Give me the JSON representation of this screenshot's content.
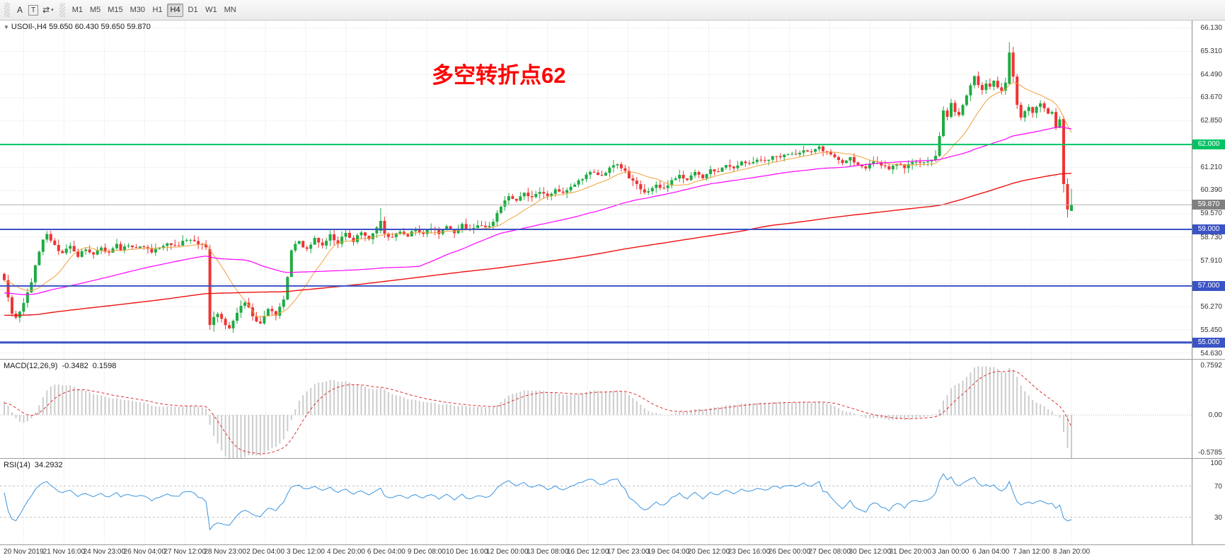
{
  "toolbar": {
    "tools": [
      {
        "id": "a",
        "label": "A",
        "boxed": false
      },
      {
        "id": "text",
        "label": "T",
        "boxed": true
      }
    ],
    "scale_button": {
      "icon": "⇄",
      "caret": "▾"
    },
    "timeframes": [
      {
        "label": "M1"
      },
      {
        "label": "M5"
      },
      {
        "label": "M15"
      },
      {
        "label": "M30"
      },
      {
        "label": "H1"
      },
      {
        "label": "H4",
        "active": true
      },
      {
        "label": "D1"
      },
      {
        "label": "W1"
      },
      {
        "label": "MN"
      }
    ]
  },
  "chart": {
    "header_text": "USOIl-,H4 59.650 60.430 59.650 59.870"
  },
  "chart_data": {
    "type": "candlestick",
    "symbol": "USOIl-",
    "timeframe": "H4",
    "ohlc_display": {
      "open": "59.650",
      "high": "60.430",
      "low": "59.650",
      "close": "59.870"
    },
    "annotation": {
      "text": "多空转折点62",
      "color": "#ff0000"
    },
    "up_color": "#1fab42",
    "down_color": "#ef3434",
    "bars": 276,
    "price_axis": {
      "min": 54.42,
      "max": 66.38,
      "grid_base": 54.63,
      "grid_step": 0.82,
      "ticks": [
        {
          "v": 66.13,
          "label": "66.130"
        },
        {
          "v": 65.31,
          "label": "65.310"
        },
        {
          "v": 64.49,
          "label": "64.490"
        },
        {
          "v": 63.67,
          "label": "63.670"
        },
        {
          "v": 62.85,
          "label": "62.850"
        },
        {
          "v": 61.21,
          "label": "61.210"
        },
        {
          "v": 60.39,
          "label": "60.390"
        },
        {
          "v": 59.57,
          "label": "59.570"
        },
        {
          "v": 58.73,
          "label": "58.730"
        },
        {
          "v": 57.91,
          "label": "57.910"
        },
        {
          "v": 56.27,
          "label": "56.270"
        },
        {
          "v": 55.45,
          "label": "55.450"
        },
        {
          "v": 54.63,
          "label": "54.630"
        }
      ]
    },
    "price_markers": [
      {
        "value": 62.0,
        "label": "62.000",
        "color": "#00c464",
        "weight": 2,
        "type": "hline"
      },
      {
        "value": 59.87,
        "label": "59.870",
        "color": "#808080",
        "line_color": "#b0b0b0",
        "weight": 1,
        "type": "current-price"
      },
      {
        "value": 59.0,
        "label": "59.000",
        "color": "#3a53c5",
        "weight": 2,
        "type": "hline"
      },
      {
        "value": 57.0,
        "label": "57.000",
        "color": "#3a53c5",
        "weight": 2,
        "type": "hline"
      },
      {
        "value": 55.0,
        "label": "55.000",
        "color": "#3a53c5",
        "weight": 3,
        "type": "hline"
      }
    ],
    "moving_averages": [
      {
        "period": 13,
        "color": "#efa23b",
        "width": 1
      },
      {
        "period": 55,
        "color": "#ff00ff",
        "width": 1.2
      },
      {
        "period": 190,
        "color": "#ee1111",
        "width": 1.4
      }
    ],
    "time_axis": [
      "20 Nov 2019",
      "21 Nov 16:00",
      "24 Nov 23:00",
      "26 Nov 04:00",
      "27 Nov 12:00",
      "28 Nov 23:00",
      "2 Dec 04:00",
      "3 Dec 12:00",
      "4 Dec 20:00",
      "6 Dec 04:00",
      "9 Dec 08:00",
      "10 Dec 16:00",
      "12 Dec 00:00",
      "13 Dec 08:00",
      "16 Dec 12:00",
      "17 Dec 23:00",
      "19 Dec 04:00",
      "20 Dec 12:00",
      "23 Dec 16:00",
      "26 Dec 00:00",
      "27 Dec 08:00",
      "30 Dec 12:00",
      "31 Dec 20:00",
      "3 Jan 00:00",
      "6 Jan 04:00",
      "7 Jan 12:00",
      "8 Jan 20:00"
    ],
    "indicators": {
      "macd": {
        "label": "MACD(12,26,9)",
        "value_main": "-0.3482",
        "value_signal": "0.1598",
        "histogram_color": "#cccccc",
        "signal_color": "#e03030",
        "axis_ticks": [
          {
            "v": 0.7592,
            "label": "0.7592"
          },
          {
            "v": 0.0,
            "label": "0.00"
          },
          {
            "v": -0.5785,
            "label": "-0.5785"
          }
        ]
      },
      "rsi": {
        "label": "RSI(14)",
        "value": "34.2932",
        "line_color": "#3b95e0",
        "levels": [
          70,
          30
        ],
        "axis_ticks": [
          {
            "v": 100,
            "label": "100"
          },
          {
            "v": 70,
            "label": "70"
          },
          {
            "v": 30,
            "label": "30"
          }
        ]
      }
    },
    "close_path_anchors": [
      [
        0,
        57.2
      ],
      [
        1,
        56.6
      ],
      [
        2,
        56.0
      ],
      [
        3,
        55.85
      ],
      [
        4,
        56.1
      ],
      [
        5,
        56.45
      ],
      [
        6,
        56.8
      ],
      [
        7,
        57.1
      ],
      [
        8,
        57.7
      ],
      [
        9,
        58.25
      ],
      [
        10,
        58.6
      ],
      [
        11,
        58.85
      ],
      [
        12,
        58.6
      ],
      [
        13,
        58.45
      ],
      [
        14,
        58.2
      ],
      [
        15,
        58.15
      ],
      [
        16,
        58.35
      ],
      [
        17,
        58.45
      ],
      [
        18,
        58.2
      ],
      [
        19,
        58.0
      ],
      [
        20,
        58.25
      ],
      [
        21,
        58.3
      ],
      [
        22,
        58.15
      ],
      [
        23,
        58.1
      ],
      [
        24,
        58.3
      ],
      [
        25,
        58.4
      ],
      [
        26,
        58.2
      ],
      [
        27,
        58.15
      ],
      [
        28,
        58.35
      ],
      [
        29,
        58.45
      ],
      [
        30,
        58.3
      ],
      [
        32,
        58.45
      ],
      [
        34,
        58.3
      ],
      [
        36,
        58.4
      ],
      [
        38,
        58.2
      ],
      [
        40,
        58.35
      ],
      [
        42,
        58.5
      ],
      [
        44,
        58.4
      ],
      [
        46,
        58.55
      ],
      [
        48,
        58.6
      ],
      [
        50,
        58.5
      ],
      [
        52,
        58.35
      ],
      [
        53,
        55.62
      ],
      [
        54,
        55.9
      ],
      [
        55,
        56.0
      ],
      [
        56,
        55.85
      ],
      [
        57,
        55.6
      ],
      [
        58,
        55.45
      ],
      [
        59,
        55.8
      ],
      [
        60,
        56.1
      ],
      [
        61,
        56.3
      ],
      [
        62,
        56.45
      ],
      [
        63,
        56.2
      ],
      [
        64,
        55.95
      ],
      [
        65,
        55.75
      ],
      [
        66,
        55.65
      ],
      [
        67,
        55.9
      ],
      [
        68,
        56.2
      ],
      [
        69,
        56.1
      ],
      [
        70,
        56.0
      ],
      [
        71,
        56.25
      ],
      [
        72,
        56.5
      ],
      [
        73,
        57.3
      ],
      [
        74,
        58.3
      ],
      [
        75,
        58.45
      ],
      [
        76,
        58.55
      ],
      [
        77,
        58.4
      ],
      [
        78,
        58.3
      ],
      [
        79,
        58.5
      ],
      [
        80,
        58.7
      ],
      [
        81,
        58.55
      ],
      [
        82,
        58.45
      ],
      [
        83,
        58.6
      ],
      [
        84,
        58.8
      ],
      [
        85,
        58.65
      ],
      [
        86,
        58.5
      ],
      [
        87,
        58.7
      ],
      [
        88,
        58.85
      ],
      [
        89,
        58.7
      ],
      [
        90,
        58.6
      ],
      [
        91,
        58.75
      ],
      [
        92,
        58.9
      ],
      [
        93,
        58.8
      ],
      [
        94,
        58.7
      ],
      [
        95,
        58.85
      ],
      [
        96,
        59.1
      ],
      [
        97,
        59.3
      ],
      [
        98,
        58.85
      ],
      [
        99,
        58.75
      ],
      [
        100,
        58.7
      ],
      [
        101,
        58.85
      ],
      [
        102,
        58.95
      ],
      [
        103,
        58.85
      ],
      [
        104,
        58.75
      ],
      [
        105,
        58.9
      ],
      [
        106,
        59.0
      ],
      [
        107,
        58.9
      ],
      [
        108,
        58.8
      ],
      [
        109,
        58.95
      ],
      [
        110,
        59.05
      ],
      [
        111,
        58.95
      ],
      [
        112,
        58.85
      ],
      [
        113,
        59.0
      ],
      [
        114,
        59.1
      ],
      [
        115,
        59.0
      ],
      [
        116,
        58.9
      ],
      [
        117,
        59.05
      ],
      [
        118,
        59.15
      ],
      [
        119,
        59.05
      ],
      [
        120,
        58.95
      ],
      [
        121,
        59.05
      ],
      [
        122,
        59.15
      ],
      [
        123,
        59.1
      ],
      [
        124,
        59.05
      ],
      [
        125,
        59.15
      ],
      [
        126,
        59.3
      ],
      [
        127,
        59.55
      ],
      [
        128,
        59.8
      ],
      [
        129,
        60.0
      ],
      [
        130,
        60.15
      ],
      [
        131,
        60.05
      ],
      [
        132,
        60.0
      ],
      [
        133,
        60.15
      ],
      [
        134,
        60.3
      ],
      [
        135,
        60.2
      ],
      [
        136,
        60.15
      ],
      [
        137,
        60.25
      ],
      [
        138,
        60.35
      ],
      [
        139,
        60.25
      ],
      [
        140,
        60.2
      ],
      [
        141,
        60.3
      ],
      [
        142,
        60.45
      ],
      [
        143,
        60.35
      ],
      [
        144,
        60.3
      ],
      [
        145,
        60.4
      ],
      [
        146,
        60.55
      ],
      [
        147,
        60.6
      ],
      [
        148,
        60.7
      ],
      [
        149,
        60.8
      ],
      [
        150,
        60.9
      ],
      [
        151,
        61.0
      ],
      [
        152,
        61.05
      ],
      [
        153,
        60.95
      ],
      [
        154,
        60.85
      ],
      [
        155,
        61.0
      ],
      [
        156,
        61.15
      ],
      [
        157,
        61.25
      ],
      [
        158,
        61.3
      ],
      [
        159,
        61.2
      ],
      [
        160,
        61.05
      ],
      [
        161,
        60.85
      ],
      [
        162,
        60.7
      ],
      [
        163,
        60.55
      ],
      [
        164,
        60.4
      ],
      [
        165,
        60.35
      ],
      [
        166,
        60.3
      ],
      [
        167,
        60.45
      ],
      [
        168,
        60.55
      ],
      [
        169,
        60.5
      ],
      [
        170,
        60.45
      ],
      [
        171,
        60.55
      ],
      [
        172,
        60.7
      ],
      [
        173,
        60.8
      ],
      [
        174,
        60.9
      ],
      [
        175,
        60.8
      ],
      [
        176,
        60.75
      ],
      [
        177,
        60.9
      ],
      [
        178,
        61.0
      ],
      [
        179,
        60.9
      ],
      [
        180,
        60.85
      ],
      [
        181,
        61.0
      ],
      [
        182,
        61.1
      ],
      [
        183,
        61.05
      ],
      [
        184,
        61.0
      ],
      [
        185,
        61.15
      ],
      [
        186,
        61.25
      ],
      [
        187,
        61.2
      ],
      [
        188,
        61.15
      ],
      [
        189,
        61.3
      ],
      [
        190,
        61.4
      ],
      [
        191,
        61.35
      ],
      [
        192,
        61.3
      ],
      [
        193,
        61.4
      ],
      [
        194,
        61.5
      ],
      [
        195,
        61.45
      ],
      [
        196,
        61.4
      ],
      [
        197,
        61.5
      ],
      [
        198,
        61.6
      ],
      [
        199,
        61.55
      ],
      [
        200,
        61.5
      ],
      [
        201,
        61.6
      ],
      [
        202,
        61.7
      ],
      [
        203,
        61.65
      ],
      [
        204,
        61.6
      ],
      [
        205,
        61.7
      ],
      [
        206,
        61.8
      ],
      [
        207,
        61.75
      ],
      [
        208,
        61.7
      ],
      [
        209,
        61.8
      ],
      [
        210,
        61.9
      ],
      [
        211,
        61.8
      ],
      [
        212,
        61.75
      ],
      [
        213,
        61.65
      ],
      [
        214,
        61.55
      ],
      [
        215,
        61.45
      ],
      [
        216,
        61.35
      ],
      [
        217,
        61.45
      ],
      [
        218,
        61.55
      ],
      [
        219,
        61.4
      ],
      [
        220,
        61.3
      ],
      [
        221,
        61.25
      ],
      [
        222,
        61.2
      ],
      [
        223,
        61.35
      ],
      [
        224,
        61.45
      ],
      [
        225,
        61.35
      ],
      [
        226,
        61.3
      ],
      [
        227,
        61.2
      ],
      [
        228,
        61.15
      ],
      [
        229,
        61.25
      ],
      [
        230,
        61.35
      ],
      [
        231,
        61.25
      ],
      [
        232,
        61.2
      ],
      [
        233,
        61.3
      ],
      [
        234,
        61.4
      ],
      [
        235,
        61.35
      ],
      [
        236,
        61.3
      ],
      [
        237,
        61.4
      ],
      [
        238,
        61.45
      ],
      [
        239,
        61.5
      ],
      [
        240,
        61.6
      ],
      [
        241,
        62.3
      ],
      [
        242,
        63.2
      ],
      [
        243,
        63.0
      ],
      [
        244,
        63.5
      ],
      [
        245,
        63.2
      ],
      [
        246,
        63.0
      ],
      [
        247,
        63.4
      ],
      [
        248,
        63.7
      ],
      [
        249,
        64.1
      ],
      [
        250,
        64.4
      ],
      [
        251,
        64.1
      ],
      [
        252,
        63.9
      ],
      [
        253,
        64.2
      ],
      [
        254,
        64.0
      ],
      [
        255,
        64.25
      ],
      [
        256,
        64.05
      ],
      [
        257,
        63.9
      ],
      [
        258,
        64.15
      ],
      [
        259,
        65.25
      ],
      [
        260,
        64.4
      ],
      [
        261,
        63.4
      ],
      [
        262,
        62.95
      ],
      [
        263,
        63.2
      ],
      [
        264,
        63.35
      ],
      [
        265,
        63.1
      ],
      [
        266,
        63.3
      ],
      [
        267,
        63.45
      ],
      [
        268,
        63.25
      ],
      [
        269,
        63.1
      ],
      [
        270,
        63.2
      ],
      [
        271,
        62.6
      ],
      [
        272,
        62.9
      ],
      [
        273,
        60.6
      ],
      [
        274,
        59.7
      ],
      [
        275,
        59.87
      ]
    ],
    "bar_overrides": {
      "53": [
        58.3,
        58.45,
        55.45,
        55.62
      ],
      "54": [
        55.62,
        56.1,
        55.38,
        55.9
      ],
      "97": [
        58.95,
        59.75,
        58.85,
        59.3
      ],
      "98": [
        59.3,
        59.45,
        58.7,
        58.85
      ],
      "241": [
        61.6,
        62.45,
        61.55,
        62.3
      ],
      "242": [
        62.3,
        63.35,
        62.25,
        63.2
      ],
      "259": [
        64.15,
        65.62,
        64.1,
        65.25
      ],
      "260": [
        65.25,
        65.45,
        64.2,
        64.4
      ],
      "261": [
        64.4,
        64.5,
        63.25,
        63.4
      ],
      "262": [
        63.4,
        63.5,
        62.85,
        62.95
      ],
      "273": [
        62.9,
        63.0,
        60.3,
        60.6
      ],
      "274": [
        60.6,
        60.8,
        59.42,
        59.7
      ],
      "275": [
        59.65,
        60.43,
        59.65,
        59.87
      ]
    }
  }
}
